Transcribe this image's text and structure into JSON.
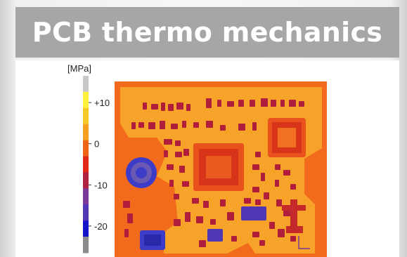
{
  "slide": {
    "title": "PCB thermo mechanics"
  },
  "colorbar": {
    "unit_label": "[MPa]",
    "ticks": [
      {
        "label": "+10",
        "value": 10
      },
      {
        "label": "0",
        "value": 0
      },
      {
        "label": "-10",
        "value": -10
      },
      {
        "label": "-20",
        "value": -20
      }
    ],
    "bands": [
      "#8c8c8c",
      "#1414c8",
      "#5038b4",
      "#7a3a9a",
      "#b02040",
      "#e02818",
      "#f06418",
      "#f5a020",
      "#f5c828",
      "#fff03c",
      "#c8c8c8"
    ]
  },
  "colors": {
    "title_bar": "#a6a6a6",
    "title_text": "#ffffff",
    "board_background": "#f26a1c",
    "board_warm": "#f7a72a",
    "component_dark": "#b01e3c",
    "component_cold": "#3c3cc8"
  }
}
